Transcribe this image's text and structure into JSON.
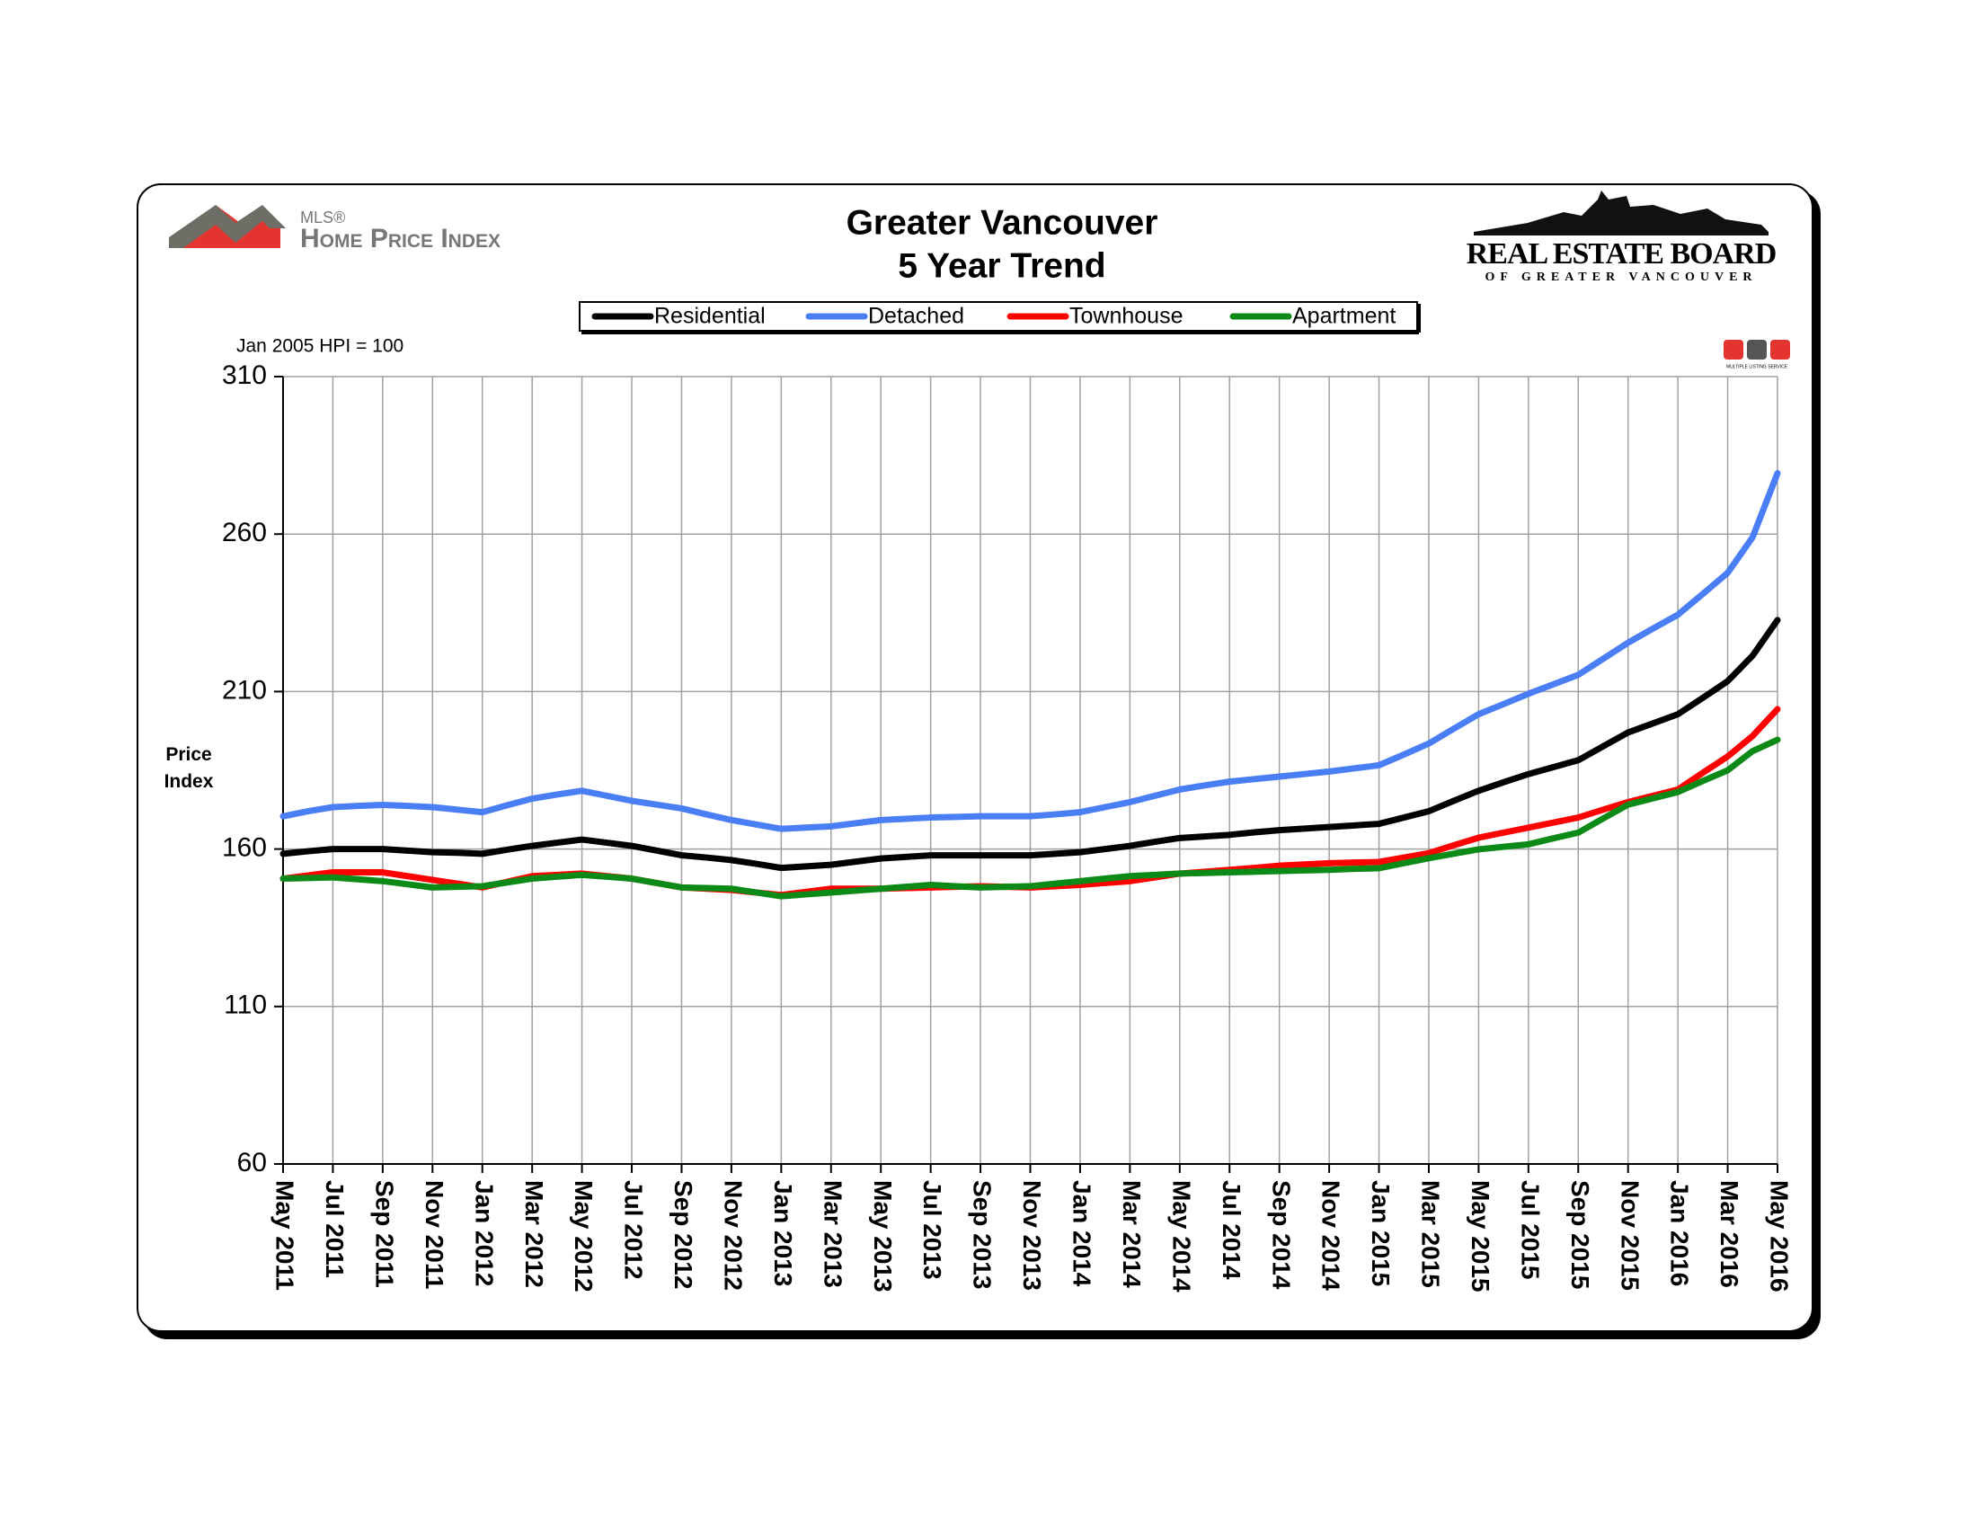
{
  "chart_data": {
    "type": "line",
    "title": "Greater Vancouver",
    "subtitle": "5 Year Trend",
    "annotation": "Jan 2005 HPI = 100",
    "y_label": "Price Index",
    "categories": [
      "May 2011",
      null,
      "Jul 2011",
      null,
      "Sep 2011",
      null,
      "Nov 2011",
      null,
      "Jan 2012",
      null,
      "Mar 2012",
      null,
      "May 2012",
      null,
      "Jul 2012",
      null,
      "Sep 2012",
      null,
      "Nov 2012",
      null,
      "Jan 2013",
      null,
      "Mar 2013",
      null,
      "May 2013",
      null,
      "Jul 2013",
      null,
      "Sep 2013",
      null,
      "Nov 2013",
      null,
      "Jan 2014",
      null,
      "Mar 2014",
      null,
      "May 2014",
      null,
      "Jul 2014",
      null,
      "Sep 2014",
      null,
      "Nov 2014",
      null,
      "Jan 2015",
      null,
      "Mar 2015",
      null,
      "May 2015",
      null,
      "Jul 2015",
      null,
      "Sep 2015",
      null,
      "Nov 2015",
      null,
      "Jan 2016",
      null,
      "Mar 2016",
      null,
      "May 2016"
    ],
    "series": [
      {
        "name": "Residential",
        "color": "#000000",
        "values": [
          158.5,
          159.3,
          160,
          160,
          160,
          159.5,
          159,
          158.8,
          158.5,
          159.8,
          161,
          162,
          163,
          162,
          161,
          159.5,
          158,
          157.3,
          156.5,
          155.3,
          154,
          154.5,
          155,
          156,
          157,
          157.5,
          158,
          158,
          158,
          158,
          158,
          158.5,
          159,
          160,
          161,
          162.3,
          163.5,
          164,
          164.5,
          165.3,
          166,
          166.5,
          167,
          167.5,
          168,
          170,
          172,
          175.3,
          178.5,
          181.2,
          183.8,
          186,
          188.2,
          192.6,
          197,
          199.9,
          202.8,
          208,
          213.3,
          221.4,
          232.7
        ]
      },
      {
        "name": "Detached",
        "color": "#4a7ef5",
        "values": [
          170.4,
          172,
          173.3,
          173.7,
          174,
          173.7,
          173.3,
          172.5,
          171.7,
          173.9,
          176,
          177.3,
          178.5,
          176.9,
          175.3,
          174.1,
          172.9,
          171,
          169.2,
          167.8,
          166.4,
          166.8,
          167.2,
          168.2,
          169.2,
          169.6,
          170,
          170.2,
          170.4,
          170.4,
          170.4,
          171,
          171.7,
          173.3,
          174.9,
          176.9,
          178.9,
          180.2,
          181.4,
          182.2,
          183,
          183.8,
          184.6,
          185.6,
          186.6,
          190,
          193.5,
          198.2,
          202.8,
          206,
          209.3,
          212.3,
          215.3,
          220.4,
          225.5,
          230,
          234.4,
          241,
          247.7,
          259,
          279.3
        ]
      },
      {
        "name": "Townhouse",
        "color": "#ff0000",
        "values": [
          150.6,
          151.6,
          152.6,
          152.6,
          152.6,
          151.4,
          150.2,
          149,
          147.8,
          149.6,
          151.4,
          151.8,
          152.2,
          151.4,
          150.6,
          149.2,
          147.8,
          147.4,
          147,
          146.2,
          145.4,
          146.4,
          147.4,
          147.4,
          147.4,
          147.6,
          147.8,
          148,
          148.2,
          148,
          147.8,
          148.2,
          148.6,
          149.2,
          149.8,
          151,
          152.2,
          152.8,
          153.4,
          154,
          154.7,
          155.1,
          155.5,
          155.7,
          155.9,
          157.3,
          158.7,
          161.2,
          163.6,
          165.2,
          166.8,
          168.4,
          170,
          172.5,
          174.9,
          176.9,
          178.9,
          184.2,
          189.4,
          195.9,
          204.4
        ]
      },
      {
        "name": "Apartment",
        "color": "#0c8a17",
        "values": [
          150.6,
          150.8,
          151,
          150.4,
          149.8,
          148.8,
          147.8,
          148,
          148.2,
          149.4,
          150.6,
          151.2,
          151.8,
          151.2,
          150.6,
          149.2,
          147.8,
          147.6,
          147.4,
          146.2,
          145,
          145.6,
          146.2,
          146.8,
          147.4,
          148,
          148.6,
          148.2,
          147.8,
          148,
          148.2,
          149,
          149.8,
          150.6,
          151.4,
          151.8,
          152.2,
          152.4,
          152.6,
          152.8,
          153,
          153.2,
          153.4,
          153.7,
          153.9,
          155.5,
          157.1,
          158.5,
          159.9,
          160.7,
          161.5,
          163.4,
          165.2,
          169.7,
          174.1,
          176.1,
          178.1,
          181.6,
          185,
          191.1,
          194.7
        ]
      }
    ],
    "ylim": [
      60,
      310
    ],
    "yticks": [
      60,
      110,
      160,
      210,
      260,
      310
    ],
    "grid": true,
    "legend": "top"
  },
  "logos": {
    "hpi_brand": "MLS®",
    "hpi_name": "Home Price Index",
    "board_name": "REAL ESTATE BOARD",
    "board_sub": "OF GREATER VANCOUVER",
    "mls_sub": "MULTIPLE LISTING SERVICE"
  }
}
